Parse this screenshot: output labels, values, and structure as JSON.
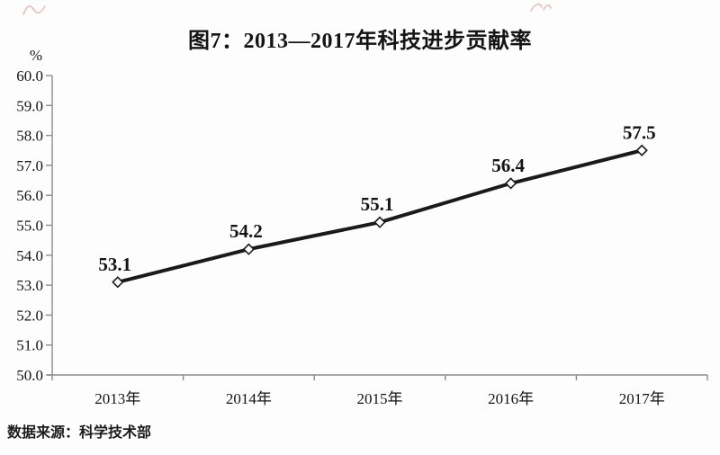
{
  "title": "图7：2013—2017年科技进步贡献率",
  "source": "数据来源：科学技术部",
  "colors": {
    "line": "#1a1a1a",
    "axis": "#8c8c8c",
    "text": "#141414",
    "marker_fill": "#ffffff",
    "background": "#fdfdfd"
  },
  "chart_data": {
    "type": "line",
    "title": "图7：2013—2017年科技进步贡献率",
    "categories": [
      "2013年",
      "2014年",
      "2015年",
      "2016年",
      "2017年"
    ],
    "values": [
      53.1,
      54.2,
      55.1,
      56.4,
      57.5
    ],
    "data_labels": [
      "53.1",
      "54.2",
      "55.1",
      "56.4",
      "57.5"
    ],
    "series_name": "科技进步贡献率",
    "xlabel": "",
    "ylabel": "%",
    "ylim": [
      50.0,
      60.0
    ],
    "y_tick_step": 1.0,
    "y_tick_labels": [
      "50.0",
      "51.0",
      "52.0",
      "53.0",
      "54.0",
      "55.0",
      "56.0",
      "57.0",
      "58.0",
      "59.0",
      "60.0"
    ],
    "grid": false,
    "legend": false,
    "marker": "diamond",
    "source": "数据来源：科学技术部"
  }
}
